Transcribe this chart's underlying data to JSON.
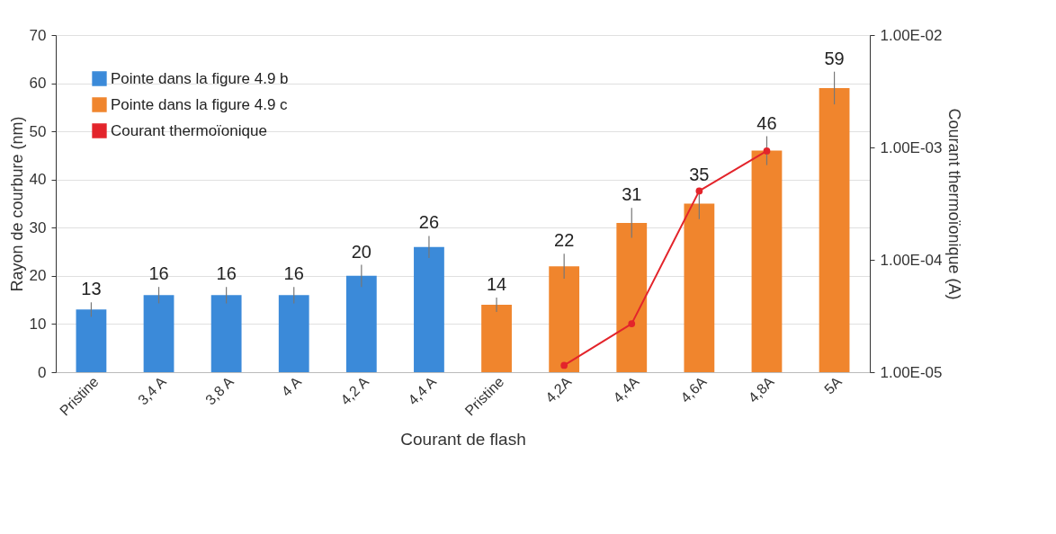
{
  "chart_data": {
    "type": "bar",
    "xlabel": "Courant de flash",
    "ylabel": "Rayon de courbure (nm)",
    "y2label": "Courant thermoïonique (A)",
    "categories": [
      "Pristine",
      "3,4 A",
      "3,8 A",
      "4 A",
      "4,2 A",
      "4,4 A",
      "Pristine",
      "4,2A",
      "4,4A",
      "4,6A",
      "4,8A",
      "5A"
    ],
    "series": [
      {
        "name": "Pointe dans la figure 4.9 b",
        "color": "#3b8ad9",
        "values": [
          13,
          16,
          16,
          16,
          20,
          26,
          null,
          null,
          null,
          null,
          null,
          null
        ],
        "value_labels": [
          "13",
          "16",
          "16",
          "16",
          "20",
          "26",
          null,
          null,
          null,
          null,
          null,
          null
        ],
        "errors": [
          1.5,
          1.7,
          1.7,
          1.7,
          2.3,
          2.3,
          null,
          null,
          null,
          null,
          null,
          null
        ]
      },
      {
        "name": "Pointe dans la figure 4.9 c",
        "color": "#f0852d",
        "values": [
          null,
          null,
          null,
          null,
          null,
          null,
          14,
          22,
          31,
          35,
          46,
          59
        ],
        "value_labels": [
          null,
          null,
          null,
          null,
          null,
          null,
          "14",
          "22",
          "31",
          "35",
          "46",
          "59"
        ],
        "errors": [
          null,
          null,
          null,
          null,
          null,
          null,
          1.5,
          2.6,
          3.1,
          3.2,
          3,
          3.4
        ]
      },
      {
        "name": "Courant thermoïonique",
        "type": "line",
        "axis": "y2",
        "color": "#e3242b",
        "marker": "circle",
        "values": [
          null,
          null,
          null,
          null,
          null,
          null,
          null,
          1.15e-05,
          2.7e-05,
          0.00041,
          0.00093,
          null
        ]
      }
    ],
    "ylim": [
      0,
      70
    ],
    "yticks": [
      0,
      10,
      20,
      30,
      40,
      50,
      60,
      70
    ],
    "log": "y2",
    "y2lim": [
      1e-05,
      0.01
    ],
    "y2ticks": [
      {
        "value": 1e-05,
        "label": "1.00E-05"
      },
      {
        "value": 0.0001,
        "label": "1.00E-04"
      },
      {
        "value": 0.001,
        "label": "1.00E-03"
      },
      {
        "value": 0.01,
        "label": "1.00E-02"
      }
    ],
    "grid": "y",
    "legend": "top left"
  }
}
